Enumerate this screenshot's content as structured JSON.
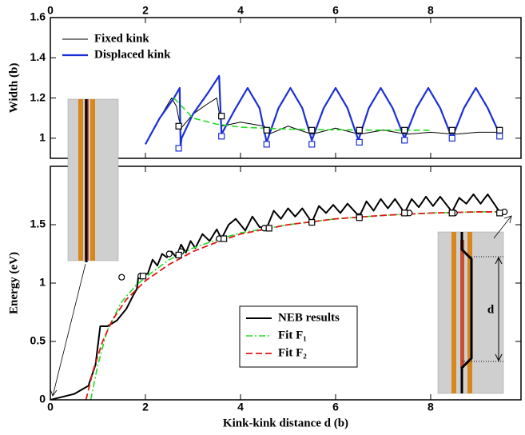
{
  "chart_data": [
    {
      "type": "line",
      "ylabel": "Width (b)",
      "xlim": [
        0,
        9.9
      ],
      "xticks": [
        0,
        2,
        4,
        6,
        8
      ],
      "ylim": [
        0.9,
        1.6
      ],
      "yticks": [
        1,
        1.2,
        1.4,
        1.6
      ],
      "legend": "upper left",
      "series": [
        {
          "name": "Fixed kink",
          "color": "#000000",
          "dash": "solid",
          "width": 1,
          "x": [
            2.0,
            2.3,
            2.55,
            2.65,
            2.7,
            2.75,
            3.0,
            3.3,
            3.5,
            3.6,
            4.0,
            4.5,
            4.6,
            5.0,
            5.5,
            6.0,
            6.5,
            7.0,
            7.5,
            8.0,
            8.5,
            9.0,
            9.45
          ],
          "values": [
            0.97,
            1.1,
            1.2,
            1.16,
            1.1,
            1.05,
            1.12,
            1.17,
            1.2,
            1.06,
            1.08,
            1.06,
            1.02,
            1.06,
            1.02,
            1.05,
            1.02,
            1.04,
            1.02,
            1.03,
            1.02,
            1.03,
            1.03
          ]
        },
        {
          "name": "Displaced kink",
          "color": "#1a2fd6",
          "dash": "solid",
          "width": 2.2,
          "x": [
            2.0,
            2.3,
            2.6,
            2.72,
            2.74,
            2.76,
            3.0,
            3.3,
            3.55,
            3.6,
            3.9,
            4.15,
            4.4,
            4.55,
            4.8,
            5.05,
            5.3,
            5.5,
            5.75,
            6.0,
            6.25,
            6.48,
            6.7,
            6.95,
            7.2,
            7.45,
            7.7,
            7.95,
            8.2,
            8.45,
            8.7,
            8.95,
            9.2,
            9.45
          ],
          "values": [
            0.97,
            1.1,
            1.2,
            1.25,
            0.96,
            1.0,
            1.12,
            1.22,
            1.31,
            1.02,
            1.15,
            1.25,
            1.15,
            0.98,
            1.15,
            1.25,
            1.15,
            0.99,
            1.15,
            1.25,
            1.15,
            0.99,
            1.15,
            1.25,
            1.15,
            1.0,
            1.15,
            1.25,
            1.15,
            1.0,
            1.15,
            1.25,
            1.15,
            1.02
          ]
        },
        {
          "color": "#22dd22",
          "dash": "dashed",
          "width": 1.6,
          "x": [
            2.6,
            3.0,
            3.5,
            4,
            5,
            6,
            7,
            8
          ],
          "values": [
            1.2,
            1.1,
            1.07,
            1.055,
            1.045,
            1.042,
            1.04,
            1.04
          ]
        },
        {
          "color": "#000000",
          "marker": "square",
          "x": [
            2.7,
            3.6,
            4.55,
            5.5,
            6.5,
            7.45,
            8.45,
            9.45
          ],
          "values": [
            1.06,
            1.11,
            1.04,
            1.04,
            1.04,
            1.04,
            1.04,
            1.04
          ]
        },
        {
          "color": "#1a2fd6",
          "marker": "square",
          "x": [
            2.7,
            3.6,
            4.55,
            5.5,
            6.5,
            7.45,
            8.45,
            9.45
          ],
          "values": [
            0.95,
            1.01,
            0.97,
            0.97,
            0.98,
            0.99,
            1.0,
            1.01
          ]
        }
      ]
    },
    {
      "type": "line",
      "xlabel": "Kink-kink distance d (b)",
      "ylabel": "Energy (eV)",
      "annotation": "d",
      "xlim": [
        0,
        9.9
      ],
      "xticks": [
        0,
        2,
        4,
        6,
        8
      ],
      "ylim": [
        0,
        2.0
      ],
      "yticks": [
        0,
        0.5,
        1,
        1.5
      ],
      "legend": "center",
      "series": [
        {
          "name": "NEB results",
          "color": "#000000",
          "dash": "solid",
          "width": 2,
          "x": [
            0,
            0.5,
            0.8,
            0.95,
            1.05,
            1.2,
            1.4,
            1.6,
            1.75,
            1.82,
            1.85,
            1.95,
            2.05,
            2.15,
            2.25,
            2.35,
            2.45,
            2.55,
            2.65,
            2.75,
            2.85,
            2.95,
            3.05,
            3.2,
            3.35,
            3.5,
            3.6,
            3.75,
            3.9,
            4.1,
            4.25,
            4.4,
            4.55,
            4.7,
            4.85,
            5.0,
            5.15,
            5.3,
            5.5,
            5.65,
            5.8,
            5.95,
            6.1,
            6.25,
            6.5,
            6.65,
            6.8,
            6.95,
            7.1,
            7.25,
            7.45,
            7.6,
            7.75,
            7.9,
            8.05,
            8.2,
            8.45,
            8.6,
            8.75,
            8.9,
            9.05,
            9.2,
            9.45
          ],
          "values": [
            0,
            0.05,
            0.12,
            0.3,
            0.63,
            0.63,
            0.68,
            0.78,
            0.9,
            0.95,
            1.05,
            1.07,
            1.08,
            1.2,
            1.15,
            1.25,
            1.22,
            1.27,
            1.22,
            1.33,
            1.26,
            1.36,
            1.3,
            1.42,
            1.36,
            1.46,
            1.38,
            1.5,
            1.55,
            1.45,
            1.57,
            1.48,
            1.47,
            1.62,
            1.55,
            1.64,
            1.57,
            1.64,
            1.52,
            1.66,
            1.6,
            1.67,
            1.6,
            1.68,
            1.57,
            1.7,
            1.62,
            1.72,
            1.64,
            1.72,
            1.6,
            1.72,
            1.65,
            1.74,
            1.66,
            1.74,
            1.61,
            1.73,
            1.68,
            1.76,
            1.68,
            1.76,
            1.61
          ]
        },
        {
          "name": "Fit F₁",
          "color": "#22dd22",
          "dash": "dash-dot",
          "width": 1.6,
          "x": [
            0.85,
            1.0,
            1.2,
            1.5,
            1.8,
            2.1,
            2.5,
            3,
            3.5,
            4,
            5,
            6,
            7,
            8,
            9,
            9.6
          ],
          "values": [
            0,
            0.3,
            0.6,
            0.84,
            0.98,
            1.08,
            1.2,
            1.3,
            1.37,
            1.43,
            1.5,
            1.55,
            1.58,
            1.6,
            1.61,
            1.61
          ]
        },
        {
          "name": "Fit F₂",
          "color": "#e01818",
          "dash": "dashed",
          "width": 1.8,
          "x": [
            0.75,
            0.9,
            1.1,
            1.3,
            1.6,
            2,
            2.5,
            3,
            3.5,
            4,
            5,
            6,
            7,
            8,
            9,
            9.6
          ],
          "values": [
            0,
            0.25,
            0.5,
            0.68,
            0.86,
            1.02,
            1.16,
            1.27,
            1.35,
            1.42,
            1.5,
            1.55,
            1.58,
            1.6,
            1.61,
            1.61
          ]
        },
        {
          "color": "#000000",
          "marker": "circle",
          "x": [
            1.5,
            1.9,
            2.5,
            2.75,
            3.55,
            4.5,
            5.5,
            6.5,
            7.55,
            8.5,
            9.55
          ],
          "values": [
            1.05,
            1.06,
            1.25,
            1.27,
            1.38,
            1.47,
            1.52,
            1.57,
            1.6,
            1.6,
            1.61
          ]
        },
        {
          "color": "#000000",
          "marker": "square",
          "x": [
            1.95,
            2.7,
            3.65,
            4.6,
            5.5,
            6.5,
            7.45,
            8.45,
            9.45
          ],
          "values": [
            1.06,
            1.24,
            1.38,
            1.47,
            1.52,
            1.56,
            1.6,
            1.6,
            1.6
          ]
        }
      ]
    }
  ]
}
